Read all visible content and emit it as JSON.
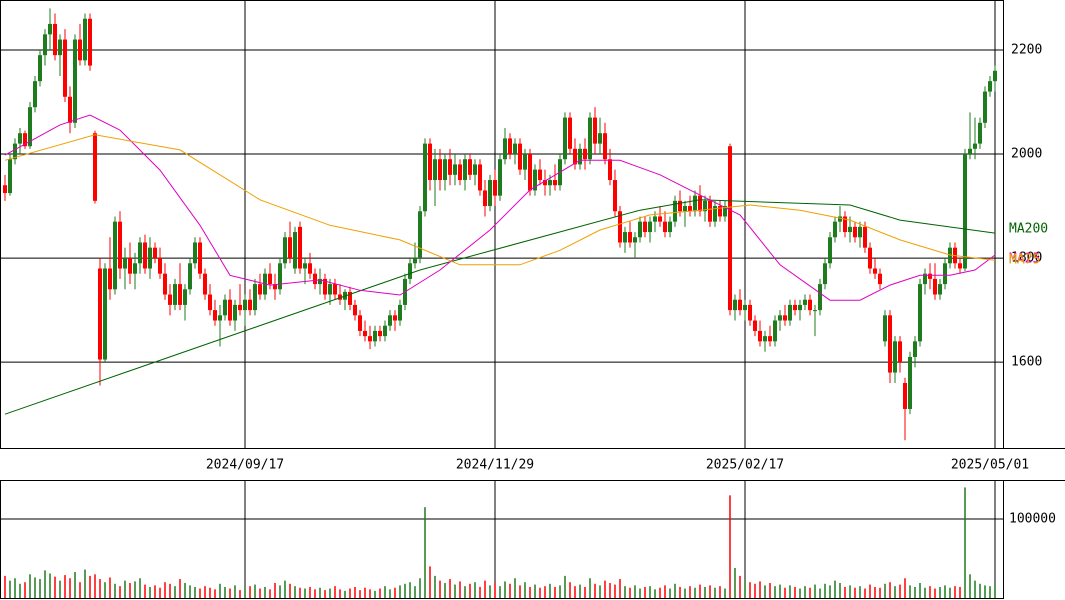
{
  "chart_data": {
    "type": "candlestick",
    "up_color": "#1e7b1e",
    "down_color": "#ff0000",
    "xlim": [
      -1,
      199.6
    ],
    "ylim": [
      1435,
      2296
    ],
    "yticks": [
      1600,
      1800,
      2000,
      2200
    ],
    "xticks": [
      {
        "value": 48,
        "label": "2024/09/17"
      },
      {
        "value": 98,
        "label": "2024/11/29"
      },
      {
        "value": 148,
        "label": "2025/02/17"
      },
      {
        "value": 198,
        "label": "2025/05/01"
      }
    ],
    "grid": true,
    "ohlc": [
      [
        1940,
        1960,
        1910,
        1925
      ],
      [
        1925,
        2000,
        1920,
        1990
      ],
      [
        1990,
        2030,
        1980,
        2020
      ],
      [
        2020,
        2050,
        2000,
        2040
      ],
      [
        2040,
        2045,
        2010,
        2015
      ],
      [
        2015,
        2100,
        2010,
        2090
      ],
      [
        2090,
        2150,
        2080,
        2140
      ],
      [
        2140,
        2200,
        2130,
        2190
      ],
      [
        2190,
        2240,
        2170,
        2230
      ],
      [
        2230,
        2280,
        2200,
        2250
      ],
      [
        2250,
        2270,
        2180,
        2190
      ],
      [
        2190,
        2230,
        2150,
        2220
      ],
      [
        2220,
        2240,
        2100,
        2110
      ],
      [
        2110,
        2130,
        2040,
        2060
      ],
      [
        2060,
        2230,
        2050,
        2220
      ],
      [
        2220,
        2250,
        2170,
        2180
      ],
      [
        2180,
        2270,
        2170,
        2260
      ],
      [
        2260,
        2270,
        2160,
        2170
      ],
      [
        2040,
        2045,
        1905,
        1910
      ],
      [
        1780,
        1800,
        1555,
        1605
      ],
      [
        1605,
        1790,
        1600,
        1780
      ],
      [
        1780,
        1840,
        1720,
        1740
      ],
      [
        1740,
        1880,
        1730,
        1870
      ],
      [
        1870,
        1890,
        1760,
        1780
      ],
      [
        1780,
        1820,
        1740,
        1800
      ],
      [
        1800,
        1830,
        1750,
        1770
      ],
      [
        1770,
        1810,
        1740,
        1790
      ],
      [
        1790,
        1840,
        1770,
        1830
      ],
      [
        1830,
        1845,
        1770,
        1780
      ],
      [
        1780,
        1840,
        1760,
        1820
      ],
      [
        1820,
        1830,
        1790,
        1800
      ],
      [
        1800,
        1820,
        1760,
        1770
      ],
      [
        1770,
        1790,
        1720,
        1730
      ],
      [
        1730,
        1750,
        1690,
        1710
      ],
      [
        1710,
        1760,
        1700,
        1750
      ],
      [
        1750,
        1790,
        1700,
        1710
      ],
      [
        1710,
        1750,
        1680,
        1740
      ],
      [
        1740,
        1800,
        1730,
        1790
      ],
      [
        1790,
        1840,
        1780,
        1830
      ],
      [
        1830,
        1840,
        1760,
        1770
      ],
      [
        1770,
        1780,
        1720,
        1730
      ],
      [
        1730,
        1750,
        1690,
        1700
      ],
      [
        1700,
        1720,
        1670,
        1680
      ],
      [
        1680,
        1710,
        1630,
        1690
      ],
      [
        1690,
        1730,
        1680,
        1720
      ],
      [
        1720,
        1740,
        1670,
        1680
      ],
      [
        1680,
        1720,
        1660,
        1710
      ],
      [
        1710,
        1750,
        1690,
        1700
      ],
      [
        1700,
        1730,
        1670,
        1720
      ],
      [
        1720,
        1740,
        1690,
        1700
      ],
      [
        1700,
        1760,
        1690,
        1750
      ],
      [
        1750,
        1770,
        1720,
        1730
      ],
      [
        1730,
        1780,
        1720,
        1770
      ],
      [
        1770,
        1790,
        1740,
        1750
      ],
      [
        1750,
        1770,
        1720,
        1740
      ],
      [
        1740,
        1800,
        1730,
        1790
      ],
      [
        1790,
        1850,
        1780,
        1840
      ],
      [
        1840,
        1870,
        1790,
        1800
      ],
      [
        1780,
        1860,
        1770,
        1850
      ],
      [
        1860,
        1870,
        1770,
        1780
      ],
      [
        1780,
        1800,
        1750,
        1790
      ],
      [
        1790,
        1810,
        1760,
        1770
      ],
      [
        1770,
        1780,
        1740,
        1750
      ],
      [
        1750,
        1780,
        1730,
        1760
      ],
      [
        1760,
        1770,
        1720,
        1730
      ],
      [
        1730,
        1760,
        1710,
        1750
      ],
      [
        1750,
        1760,
        1720,
        1730
      ],
      [
        1730,
        1750,
        1710,
        1720
      ],
      [
        1720,
        1740,
        1700,
        1735
      ],
      [
        1735,
        1745,
        1700,
        1710
      ],
      [
        1710,
        1720,
        1680,
        1690
      ],
      [
        1690,
        1700,
        1650,
        1660
      ],
      [
        1660,
        1680,
        1640,
        1650
      ],
      [
        1650,
        1670,
        1625,
        1640
      ],
      [
        1640,
        1670,
        1630,
        1660
      ],
      [
        1660,
        1670,
        1640,
        1650
      ],
      [
        1650,
        1680,
        1640,
        1670
      ],
      [
        1670,
        1700,
        1660,
        1690
      ],
      [
        1690,
        1700,
        1660,
        1680
      ],
      [
        1680,
        1720,
        1670,
        1710
      ],
      [
        1710,
        1770,
        1700,
        1760
      ],
      [
        1760,
        1800,
        1750,
        1790
      ],
      [
        1790,
        1830,
        1780,
        1800
      ],
      [
        1800,
        1900,
        1790,
        1890
      ],
      [
        1890,
        2030,
        1880,
        2020
      ],
      [
        2020,
        2030,
        1930,
        1950
      ],
      [
        1950,
        2010,
        1900,
        1990
      ],
      [
        1990,
        2010,
        1930,
        1950
      ],
      [
        1950,
        2000,
        1930,
        1990
      ],
      [
        1990,
        2010,
        1940,
        1960
      ],
      [
        1960,
        2000,
        1940,
        1980
      ],
      [
        1980,
        1990,
        1940,
        1950
      ],
      [
        1950,
        2000,
        1930,
        1990
      ],
      [
        1990,
        2000,
        1950,
        1960
      ],
      [
        1960,
        1990,
        1940,
        1980
      ],
      [
        1980,
        1990,
        1920,
        1930
      ],
      [
        1930,
        1950,
        1880,
        1900
      ],
      [
        1900,
        1960,
        1890,
        1950
      ],
      [
        1950,
        1970,
        1900,
        1920
      ],
      [
        1920,
        2000,
        1910,
        1990
      ],
      [
        1990,
        2050,
        1980,
        2030
      ],
      [
        2030,
        2040,
        1990,
        2000
      ],
      [
        2000,
        2030,
        1980,
        2020
      ],
      [
        2020,
        2030,
        1960,
        1970
      ],
      [
        1970,
        2010,
        1950,
        2000
      ],
      [
        2000,
        2010,
        1920,
        1930
      ],
      [
        1930,
        1980,
        1920,
        1970
      ],
      [
        1970,
        1990,
        1940,
        1950
      ],
      [
        1950,
        1970,
        1920,
        1940
      ],
      [
        1940,
        1960,
        1920,
        1950
      ],
      [
        1950,
        1980,
        1930,
        1940
      ],
      [
        1940,
        2000,
        1930,
        1990
      ],
      [
        1990,
        2080,
        1980,
        2070
      ],
      [
        2070,
        2080,
        2000,
        2010
      ],
      [
        2010,
        2030,
        1970,
        1980
      ],
      [
        1980,
        2020,
        1970,
        2010
      ],
      [
        2010,
        2030,
        1970,
        1990
      ],
      [
        1990,
        2080,
        1980,
        2070
      ],
      [
        2070,
        2090,
        2000,
        2020
      ],
      [
        2020,
        2070,
        2000,
        2040
      ],
      [
        2040,
        2060,
        1980,
        1990
      ],
      [
        1990,
        2010,
        1940,
        1950
      ],
      [
        1950,
        1970,
        1880,
        1890
      ],
      [
        1890,
        1900,
        1820,
        1830
      ],
      [
        1830,
        1860,
        1810,
        1850
      ],
      [
        1850,
        1870,
        1820,
        1830
      ],
      [
        1830,
        1850,
        1800,
        1840
      ],
      [
        1840,
        1880,
        1830,
        1870
      ],
      [
        1870,
        1880,
        1840,
        1850
      ],
      [
        1850,
        1880,
        1830,
        1870
      ],
      [
        1870,
        1890,
        1850,
        1880
      ],
      [
        1880,
        1900,
        1860,
        1870
      ],
      [
        1870,
        1890,
        1840,
        1850
      ],
      [
        1850,
        1880,
        1840,
        1870
      ],
      [
        1870,
        1920,
        1860,
        1910
      ],
      [
        1910,
        1930,
        1880,
        1890
      ],
      [
        1890,
        1910,
        1860,
        1900
      ],
      [
        1900,
        1920,
        1880,
        1890
      ],
      [
        1890,
        1930,
        1880,
        1920
      ],
      [
        1920,
        1940,
        1880,
        1890
      ],
      [
        1890,
        1920,
        1870,
        1910
      ],
      [
        1910,
        1920,
        1860,
        1870
      ],
      [
        1870,
        1910,
        1860,
        1900
      ],
      [
        1900,
        1910,
        1870,
        1880
      ],
      [
        1880,
        1910,
        1870,
        1900
      ],
      [
        2015,
        2020,
        1690,
        1700
      ],
      [
        1700,
        1730,
        1680,
        1720
      ],
      [
        1720,
        1740,
        1690,
        1700
      ],
      [
        1700,
        1720,
        1680,
        1710
      ],
      [
        1710,
        1720,
        1670,
        1680
      ],
      [
        1680,
        1690,
        1650,
        1660
      ],
      [
        1660,
        1680,
        1630,
        1640
      ],
      [
        1640,
        1660,
        1620,
        1650
      ],
      [
        1650,
        1670,
        1630,
        1640
      ],
      [
        1640,
        1690,
        1630,
        1680
      ],
      [
        1680,
        1700,
        1660,
        1690
      ],
      [
        1690,
        1710,
        1670,
        1680
      ],
      [
        1680,
        1720,
        1670,
        1710
      ],
      [
        1710,
        1720,
        1690,
        1700
      ],
      [
        1700,
        1720,
        1680,
        1710
      ],
      [
        1710,
        1730,
        1700,
        1720
      ],
      [
        1720,
        1730,
        1690,
        1700
      ],
      [
        1700,
        1710,
        1650,
        1700
      ],
      [
        1700,
        1760,
        1690,
        1750
      ],
      [
        1750,
        1800,
        1740,
        1790
      ],
      [
        1790,
        1850,
        1780,
        1840
      ],
      [
        1840,
        1880,
        1830,
        1870
      ],
      [
        1870,
        1900,
        1850,
        1880
      ],
      [
        1880,
        1890,
        1840,
        1850
      ],
      [
        1850,
        1880,
        1830,
        1860
      ],
      [
        1860,
        1870,
        1830,
        1840
      ],
      [
        1840,
        1870,
        1820,
        1860
      ],
      [
        1860,
        1870,
        1810,
        1820
      ],
      [
        1820,
        1830,
        1770,
        1780
      ],
      [
        1780,
        1800,
        1760,
        1770
      ],
      [
        1770,
        1780,
        1740,
        1750
      ],
      [
        1640,
        1700,
        1630,
        1690
      ],
      [
        1690,
        1700,
        1560,
        1580
      ],
      [
        1580,
        1650,
        1560,
        1640
      ],
      [
        1640,
        1650,
        1580,
        1600
      ],
      [
        1560,
        1570,
        1450,
        1510
      ],
      [
        1510,
        1620,
        1500,
        1610
      ],
      [
        1610,
        1650,
        1590,
        1640
      ],
      [
        1640,
        1760,
        1630,
        1750
      ],
      [
        1750,
        1780,
        1730,
        1770
      ],
      [
        1770,
        1790,
        1740,
        1760
      ],
      [
        1760,
        1790,
        1720,
        1730
      ],
      [
        1730,
        1760,
        1720,
        1750
      ],
      [
        1750,
        1800,
        1740,
        1790
      ],
      [
        1790,
        1830,
        1780,
        1820
      ],
      [
        1820,
        1830,
        1780,
        1790
      ],
      [
        1790,
        1800,
        1770,
        1780
      ],
      [
        1780,
        2010,
        1775,
        2000
      ],
      [
        2000,
        2080,
        1990,
        2010
      ],
      [
        2010,
        2070,
        1990,
        2020
      ],
      [
        2020,
        2070,
        2010,
        2060
      ],
      [
        2060,
        2130,
        2050,
        2120
      ],
      [
        2120,
        2150,
        2110,
        2140
      ],
      [
        2140,
        2170,
        2120,
        2160
      ]
    ],
    "series": [
      {
        "name": "MA200",
        "color": "#006400",
        "x": [
          0,
          83,
          127,
          139,
          169,
          179,
          198
        ],
        "values": [
          1500,
          1777,
          1892,
          1912,
          1902,
          1873,
          1848
        ]
      },
      {
        "name": "MA25",
        "color": "#e000c0",
        "x": [
          0,
          11,
          17,
          23,
          31,
          39,
          45,
          53,
          63,
          71,
          79,
          87,
          97,
          105,
          115,
          123,
          131,
          139,
          147,
          155,
          165,
          171,
          177,
          183,
          189,
          194,
          198
        ],
        "values": [
          1998,
          2056,
          2075,
          2046,
          1969,
          1863,
          1767,
          1748,
          1758,
          1738,
          1729,
          1777,
          1854,
          1931,
          1988,
          1988,
          1960,
          1921,
          1883,
          1787,
          1719,
          1719,
          1748,
          1767,
          1767,
          1777,
          1806
        ]
      },
      {
        "name": "MA75",
        "color": "#f0a000",
        "x": [
          0,
          18,
          35,
          51,
          65,
          79,
          91,
          103,
          111,
          119,
          129,
          139,
          149,
          159,
          169,
          179,
          189,
          198
        ],
        "values": [
          1988,
          2037,
          2008,
          1912,
          1863,
          1835,
          1787,
          1787,
          1815,
          1854,
          1883,
          1892,
          1902,
          1892,
          1873,
          1835,
          1806,
          1796
        ]
      }
    ],
    "volume": [
      28000,
      22000,
      25000,
      18000,
      20000,
      30000,
      26000,
      24000,
      35000,
      31000,
      27000,
      22000,
      29000,
      25000,
      33000,
      20000,
      36000,
      28000,
      30000,
      24000,
      20000,
      26000,
      18000,
      15000,
      22000,
      19000,
      21000,
      25000,
      17000,
      14000,
      16000,
      13000,
      20000,
      18000,
      15000,
      24000,
      19000,
      16000,
      14000,
      12000,
      15000,
      13000,
      11000,
      18000,
      14000,
      12000,
      16000,
      10000,
      13000,
      15000,
      17000,
      12000,
      14000,
      11000,
      19000,
      16000,
      22000,
      18000,
      15000,
      13000,
      12000,
      14000,
      11000,
      13000,
      10000,
      12000,
      15000,
      11000,
      9000,
      12000,
      14000,
      10000,
      13000,
      11000,
      9000,
      12000,
      15000,
      11000,
      13000,
      16000,
      18000,
      20000,
      15000,
      25000,
      115000,
      40000,
      28000,
      22000,
      19000,
      24000,
      17000,
      21000,
      15000,
      18000,
      20000,
      14000,
      22000,
      16000,
      19000,
      15000,
      21000,
      18000,
      25000,
      16000,
      20000,
      14000,
      17000,
      13000,
      15000,
      18000,
      14000,
      16000,
      28000,
      20000,
      15000,
      17000,
      14000,
      25000,
      18000,
      16000,
      22000,
      19000,
      17000,
      24000,
      15000,
      13000,
      16000,
      12000,
      14000,
      15000,
      11000,
      13000,
      16000,
      12000,
      18000,
      14000,
      12000,
      15000,
      13000,
      17000,
      14000,
      16000,
      13000,
      15000,
      12000,
      130000,
      38000,
      28000,
      22000,
      20000,
      18000,
      21000,
      16000,
      19000,
      15000,
      17000,
      13000,
      16000,
      14000,
      12000,
      15000,
      13000,
      17000,
      12000,
      18000,
      16000,
      22000,
      19000,
      14000,
      16000,
      13000,
      15000,
      12000,
      17000,
      14000,
      13000,
      18000,
      20000,
      15000,
      17000,
      25000,
      16000,
      14000,
      19000,
      13000,
      15000,
      12000,
      14000,
      16000,
      13000,
      15000,
      14000,
      140000,
      30000,
      22000,
      18000,
      16000,
      15000,
      17000
    ],
    "volume_ylim": [
      0,
      149400
    ],
    "volume_yticks": [
      100000
    ]
  }
}
